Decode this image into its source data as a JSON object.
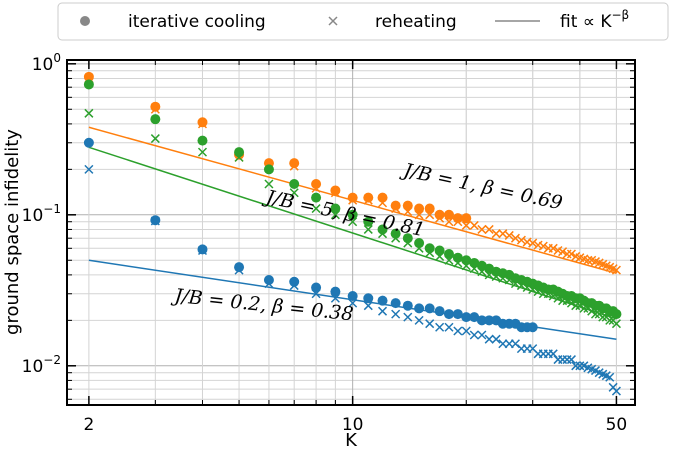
{
  "chart_data": {
    "type": "scatter",
    "x_scale": "log",
    "y_scale": "log",
    "xlim": [
      1.75,
      56
    ],
    "ylim": [
      0.0055,
      1.06
    ],
    "xlabel": "K",
    "ylabel": "ground space infidelity",
    "x_ticks": [
      {
        "value": 2,
        "label": "2"
      },
      {
        "value": 10,
        "label": "10"
      },
      {
        "value": 50,
        "label": "50"
      }
    ],
    "y_ticks": [
      {
        "value": 1,
        "base": "10",
        "exp": "0"
      },
      {
        "value": 0.1,
        "base": "10",
        "exp": "−1"
      },
      {
        "value": 0.01,
        "base": "10",
        "exp": "−2"
      }
    ],
    "grid": true,
    "legend": {
      "placement": "top",
      "entries": [
        {
          "marker": "dot",
          "label": "iterative cooling"
        },
        {
          "marker": "cross",
          "label": "reheating"
        },
        {
          "marker": "line",
          "label": "fit ∝ K",
          "label_sup": "−β"
        }
      ]
    },
    "colors": {
      "J/B=1": "#ff7f0e",
      "J/B=5": "#2ca02c",
      "J/B=0.2": "#1f77b4",
      "legend_gray": "#888888"
    },
    "series": [
      {
        "name": "J/B = 1, β = 0.69",
        "color": "#ff7f0e",
        "iterative_cooling": {
          "x": [
            2,
            3,
            4,
            5,
            6,
            7,
            8,
            9,
            10,
            11,
            12,
            13,
            14,
            15,
            16,
            17,
            18,
            19,
            20
          ],
          "y": [
            0.82,
            0.52,
            0.41,
            0.25,
            0.22,
            0.22,
            0.16,
            0.145,
            0.13,
            0.13,
            0.13,
            0.115,
            0.115,
            0.11,
            0.11,
            0.1,
            0.1,
            0.095,
            0.095
          ]
        },
        "reheating": {
          "x": [
            2,
            3,
            4,
            5,
            6,
            7,
            8,
            9,
            10,
            11,
            12,
            13,
            14,
            15,
            16,
            17,
            18,
            19,
            20,
            21,
            22,
            23,
            24,
            25,
            26,
            27,
            28,
            29,
            30,
            31,
            32,
            33,
            34,
            35,
            36,
            37,
            38,
            39,
            40,
            41,
            42,
            43,
            44,
            45,
            46,
            47,
            48,
            49,
            50
          ],
          "y": [
            0.8,
            0.5,
            0.4,
            0.24,
            0.21,
            0.21,
            0.15,
            0.14,
            0.125,
            0.125,
            0.12,
            0.11,
            0.105,
            0.1,
            0.1,
            0.095,
            0.09,
            0.09,
            0.085,
            0.085,
            0.08,
            0.08,
            0.075,
            0.075,
            0.073,
            0.07,
            0.068,
            0.066,
            0.065,
            0.063,
            0.062,
            0.06,
            0.06,
            0.058,
            0.057,
            0.055,
            0.055,
            0.053,
            0.052,
            0.051,
            0.05,
            0.05,
            0.049,
            0.048,
            0.047,
            0.046,
            0.045,
            0.044,
            0.043
          ]
        },
        "fit": {
          "label": "J/B = 1, β = 0.69",
          "x": [
            2,
            50
          ],
          "y": [
            0.38,
            0.041
          ]
        }
      },
      {
        "name": "J/B = 5, β = 0.81",
        "color": "#2ca02c",
        "iterative_cooling": {
          "x": [
            2,
            3,
            4,
            5,
            6,
            7,
            8,
            9,
            10,
            11,
            12,
            13,
            14,
            15,
            16,
            17,
            18,
            19,
            20,
            21,
            22,
            23,
            24,
            25,
            26,
            27,
            28,
            29,
            30,
            31,
            32,
            33,
            34,
            35,
            36,
            37,
            38,
            39,
            40,
            41,
            42,
            43,
            44,
            45,
            46,
            47,
            48,
            49,
            50
          ],
          "y": [
            0.73,
            0.43,
            0.31,
            0.26,
            0.2,
            0.16,
            0.13,
            0.11,
            0.1,
            0.09,
            0.08,
            0.075,
            0.07,
            0.065,
            0.06,
            0.058,
            0.055,
            0.052,
            0.05,
            0.048,
            0.046,
            0.044,
            0.042,
            0.041,
            0.04,
            0.038,
            0.037,
            0.036,
            0.035,
            0.034,
            0.033,
            0.032,
            0.032,
            0.031,
            0.03,
            0.029,
            0.029,
            0.028,
            0.028,
            0.027,
            0.026,
            0.026,
            0.025,
            0.025,
            0.024,
            0.024,
            0.023,
            0.023,
            0.022
          ]
        },
        "reheating": {
          "x": [
            2,
            3,
            4,
            5,
            6,
            7,
            8,
            9,
            10,
            11,
            12,
            13,
            14,
            15,
            16,
            17,
            18,
            19,
            20,
            21,
            22,
            23,
            24,
            25,
            26,
            27,
            28,
            29,
            30,
            31,
            32,
            33,
            34,
            35,
            36,
            37,
            38,
            39,
            40,
            41,
            42,
            43,
            44,
            45,
            46,
            47,
            48,
            49,
            50
          ],
          "y": [
            0.47,
            0.32,
            0.26,
            0.24,
            0.16,
            0.14,
            0.11,
            0.1,
            0.09,
            0.08,
            0.075,
            0.07,
            0.065,
            0.06,
            0.056,
            0.053,
            0.05,
            0.048,
            0.046,
            0.044,
            0.042,
            0.04,
            0.039,
            0.038,
            0.037,
            0.035,
            0.034,
            0.033,
            0.032,
            0.031,
            0.03,
            0.03,
            0.029,
            0.028,
            0.027,
            0.027,
            0.026,
            0.025,
            0.025,
            0.024,
            0.024,
            0.023,
            0.022,
            0.022,
            0.021,
            0.021,
            0.02,
            0.02,
            0.019
          ]
        },
        "fit": {
          "label": "J/B = 5, β = 0.81",
          "x": [
            2,
            50
          ],
          "y": [
            0.28,
            0.0205
          ]
        }
      },
      {
        "name": "J/B = 0.2, β = 0.38",
        "color": "#1f77b4",
        "iterative_cooling": {
          "x": [
            2,
            3,
            4,
            5,
            6,
            7,
            8,
            9,
            10,
            11,
            12,
            13,
            14,
            15,
            16,
            17,
            18,
            19,
            20,
            21,
            22,
            23,
            24,
            25,
            26,
            27,
            28,
            29,
            30
          ],
          "y": [
            0.3,
            0.092,
            0.059,
            0.045,
            0.037,
            0.036,
            0.033,
            0.031,
            0.029,
            0.028,
            0.027,
            0.026,
            0.025,
            0.024,
            0.024,
            0.023,
            0.022,
            0.022,
            0.021,
            0.021,
            0.02,
            0.02,
            0.02,
            0.019,
            0.019,
            0.019,
            0.018,
            0.018,
            0.018
          ]
        },
        "reheating": {
          "x": [
            2,
            3,
            4,
            5,
            6,
            7,
            8,
            9,
            10,
            11,
            12,
            13,
            14,
            15,
            16,
            17,
            18,
            19,
            20,
            21,
            22,
            23,
            24,
            25,
            26,
            27,
            28,
            29,
            30,
            31,
            32,
            33,
            34,
            35,
            36,
            37,
            38,
            39,
            40,
            41,
            42,
            43,
            44,
            45,
            46,
            47,
            48,
            49,
            50
          ],
          "y": [
            0.2,
            0.091,
            0.058,
            0.043,
            0.035,
            0.034,
            0.03,
            0.028,
            0.026,
            0.025,
            0.023,
            0.022,
            0.021,
            0.02,
            0.019,
            0.018,
            0.018,
            0.017,
            0.017,
            0.016,
            0.016,
            0.015,
            0.015,
            0.014,
            0.014,
            0.014,
            0.013,
            0.013,
            0.013,
            0.012,
            0.012,
            0.012,
            0.012,
            0.011,
            0.011,
            0.011,
            0.011,
            0.01,
            0.01,
            0.01,
            0.0097,
            0.0095,
            0.0093,
            0.009,
            0.0088,
            0.0086,
            0.0084,
            0.0072,
            0.0068
          ]
        },
        "fit": {
          "label": "J/B = 0.2, β = 0.38",
          "x": [
            2,
            50
          ],
          "y": [
            0.05,
            0.015
          ]
        }
      }
    ],
    "annotations": [
      {
        "series": 0,
        "text": "J/B = 1, β = 0.69",
        "at": [
          22,
          0.14
        ],
        "rotate": 12
      },
      {
        "series": 1,
        "text": "J/B = 5, β = 0.81",
        "at": [
          9.5,
          0.093
        ],
        "rotate": 12
      },
      {
        "series": 2,
        "text": "J/B = 0.2, β = 0.38",
        "at": [
          5.8,
          0.023
        ],
        "rotate": 6
      }
    ]
  }
}
